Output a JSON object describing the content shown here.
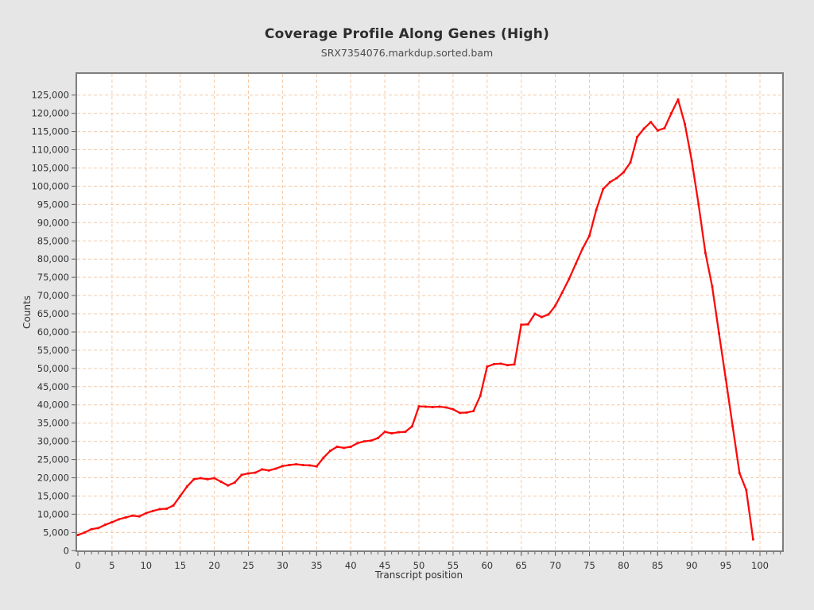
{
  "header": {
    "title": "Coverage Profile Along Genes (High)",
    "subtitle": "SRX7354076.markdup.sorted.bam"
  },
  "chart_data": {
    "type": "line",
    "title": "Coverage Profile Along Genes (High)",
    "subtitle": "SRX7354076.markdup.sorted.bam",
    "xlabel": "Transcript position",
    "ylabel": "Counts",
    "xlim": [
      0,
      100
    ],
    "ylim": [
      0,
      125000
    ],
    "x_tick_step": 5,
    "x_minor_tick_step": 1,
    "y_tick_step": 5000,
    "grid": true,
    "legend": "none",
    "line_color": "#fb0a0a",
    "grid_color": "#f5c9a5",
    "axis_color": "#7e7e7e",
    "tick_color": "#606060",
    "label_color": "#333333",
    "plot_bg": "#ffffff",
    "outer_bg": "#e6e6e6",
    "x": [
      0,
      1,
      2,
      3,
      4,
      5,
      6,
      7,
      8,
      9,
      10,
      11,
      12,
      13,
      14,
      15,
      16,
      17,
      18,
      19,
      20,
      21,
      22,
      23,
      24,
      25,
      26,
      27,
      28,
      29,
      30,
      31,
      32,
      33,
      34,
      35,
      36,
      37,
      38,
      39,
      40,
      41,
      42,
      43,
      44,
      45,
      46,
      47,
      48,
      49,
      50,
      51,
      52,
      53,
      54,
      55,
      56,
      57,
      58,
      59,
      60,
      61,
      62,
      63,
      64,
      65,
      66,
      67,
      68,
      69,
      70,
      71,
      72,
      73,
      74,
      75,
      76,
      77,
      78,
      79,
      80,
      81,
      82,
      83,
      84,
      85,
      86,
      87,
      88,
      89,
      90,
      91,
      92,
      93,
      94,
      95,
      96,
      97,
      98,
      99
    ],
    "values": [
      4300,
      5000,
      5900,
      6200,
      7100,
      7800,
      8600,
      9100,
      9600,
      9400,
      10300,
      10900,
      11400,
      11500,
      12400,
      15000,
      17600,
      19600,
      19900,
      19600,
      19900,
      18900,
      17900,
      18700,
      20800,
      21200,
      21400,
      22300,
      22000,
      22500,
      23200,
      23500,
      23700,
      23500,
      23400,
      23100,
      25500,
      27400,
      28500,
      28200,
      28500,
      29500,
      30000,
      30200,
      30900,
      32600,
      32200,
      32500,
      32600,
      34100,
      39600,
      39500,
      39400,
      39500,
      39300,
      38800,
      37800,
      37900,
      38300,
      42500,
      50500,
      51200,
      51300,
      50900,
      51100,
      62000,
      62100,
      65000,
      64100,
      64800,
      67200,
      70800,
      74500,
      78700,
      82900,
      86400,
      93500,
      99200,
      101100,
      102200,
      103800,
      106500,
      113500,
      115800,
      117600,
      115300,
      115900,
      120000,
      123800,
      117000,
      107000,
      95000,
      81700,
      72500,
      59600,
      47000,
      34100,
      21300,
      16600,
      3100
    ]
  }
}
